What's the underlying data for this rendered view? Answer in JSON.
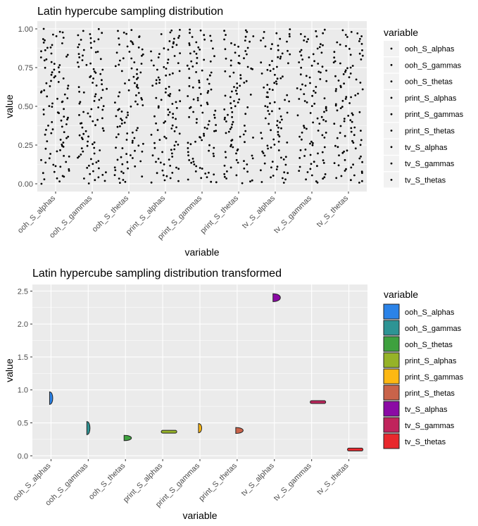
{
  "colors": {
    "panel_bg": "#ebebeb",
    "grid_major": "#ffffff",
    "tick_text": "#4d4d4d",
    "point": "#000000"
  },
  "chart_data": [
    {
      "type": "scatter",
      "title": "Latin hypercube sampling distribution",
      "xlabel": "variable",
      "ylabel": "value",
      "categories": [
        "ooh_S_alphas",
        "ooh_S_gammas",
        "ooh_S_thetas",
        "print_S_alphas",
        "print_S_gammas",
        "print_S_thetas",
        "tv_S_alphas",
        "tv_S_gammas",
        "tv_S_thetas"
      ],
      "ylim": [
        -0.05,
        1.05
      ],
      "yticks": [
        "0.00",
        "0.25",
        "0.50",
        "0.75",
        "1.00"
      ],
      "ytick_values": [
        0,
        0.25,
        0.5,
        0.75,
        1.0
      ],
      "points_per_category": 100,
      "distribution": "uniform [0, 1] (jittered)",
      "legend": {
        "title": "variable",
        "position": "right"
      },
      "grid": true
    },
    {
      "type": "violin",
      "title": "Latin hypercube sampling distribution transformed",
      "xlabel": "variable",
      "ylabel": "value",
      "categories": [
        "ooh_S_alphas",
        "ooh_S_gammas",
        "ooh_S_thetas",
        "print_S_alphas",
        "print_S_gammas",
        "print_S_thetas",
        "tv_S_alphas",
        "tv_S_gammas",
        "tv_S_thetas"
      ],
      "ylim": [
        -0.05,
        2.6
      ],
      "yticks": [
        "0.0",
        "0.5",
        "1.0",
        "1.5",
        "2.0",
        "2.5"
      ],
      "ytick_values": [
        0,
        0.5,
        1.0,
        1.5,
        2.0,
        2.5
      ],
      "series": [
        {
          "name": "ooh_S_alphas",
          "min": 0.78,
          "max": 0.97,
          "color": "#2b83e8"
        },
        {
          "name": "ooh_S_gammas",
          "min": 0.32,
          "max": 0.52,
          "color": "#2e9494"
        },
        {
          "name": "ooh_S_thetas",
          "min": 0.23,
          "max": 0.31,
          "color": "#3ea13e"
        },
        {
          "name": "print_S_alphas",
          "min": 0.34,
          "max": 0.39,
          "color": "#96b328"
        },
        {
          "name": "print_S_gammas",
          "min": 0.35,
          "max": 0.49,
          "color": "#fdb813"
        },
        {
          "name": "print_S_thetas",
          "min": 0.34,
          "max": 0.43,
          "color": "#c9634a"
        },
        {
          "name": "tv_S_alphas",
          "min": 2.34,
          "max": 2.46,
          "color": "#8b0aa5"
        },
        {
          "name": "tv_S_gammas",
          "min": 0.8,
          "max": 0.83,
          "color": "#c0245c"
        },
        {
          "name": "tv_S_thetas",
          "min": 0.08,
          "max": 0.11,
          "color": "#e8282d"
        }
      ],
      "legend": {
        "title": "variable",
        "position": "right"
      },
      "grid": true
    }
  ]
}
